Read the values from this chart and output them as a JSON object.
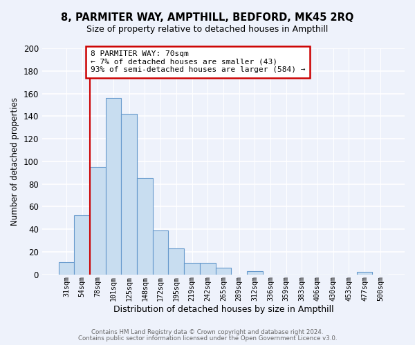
{
  "title1": "8, PARMITER WAY, AMPTHILL, BEDFORD, MK45 2RQ",
  "title2": "Size of property relative to detached houses in Ampthill",
  "xlabel": "Distribution of detached houses by size in Ampthill",
  "ylabel": "Number of detached properties",
  "bar_labels": [
    "31sqm",
    "54sqm",
    "78sqm",
    "101sqm",
    "125sqm",
    "148sqm",
    "172sqm",
    "195sqm",
    "219sqm",
    "242sqm",
    "265sqm",
    "289sqm",
    "312sqm",
    "336sqm",
    "359sqm",
    "383sqm",
    "406sqm",
    "430sqm",
    "453sqm",
    "477sqm",
    "500sqm"
  ],
  "bar_values": [
    11,
    52,
    95,
    156,
    142,
    85,
    39,
    23,
    10,
    10,
    6,
    0,
    3,
    0,
    0,
    0,
    0,
    0,
    0,
    2,
    0
  ],
  "bar_color": "#c8ddf0",
  "bar_edge_color": "#6699cc",
  "vline_color": "#cc0000",
  "vline_x": 2.0,
  "ann_line1": "8 PARMITER WAY: 70sqm",
  "ann_line2": "← 7% of detached houses are smaller (43)",
  "ann_line3": "93% of semi-detached houses are larger (584) →",
  "ylim": [
    0,
    200
  ],
  "yticks": [
    0,
    20,
    40,
    60,
    80,
    100,
    120,
    140,
    160,
    180,
    200
  ],
  "footer1": "Contains HM Land Registry data © Crown copyright and database right 2024.",
  "footer2": "Contains public sector information licensed under the Open Government Licence v3.0.",
  "bg_color": "#eef2fb",
  "grid_color": "#ffffff",
  "ann_box_color": "#cc0000",
  "ann_text_color": "#000000"
}
